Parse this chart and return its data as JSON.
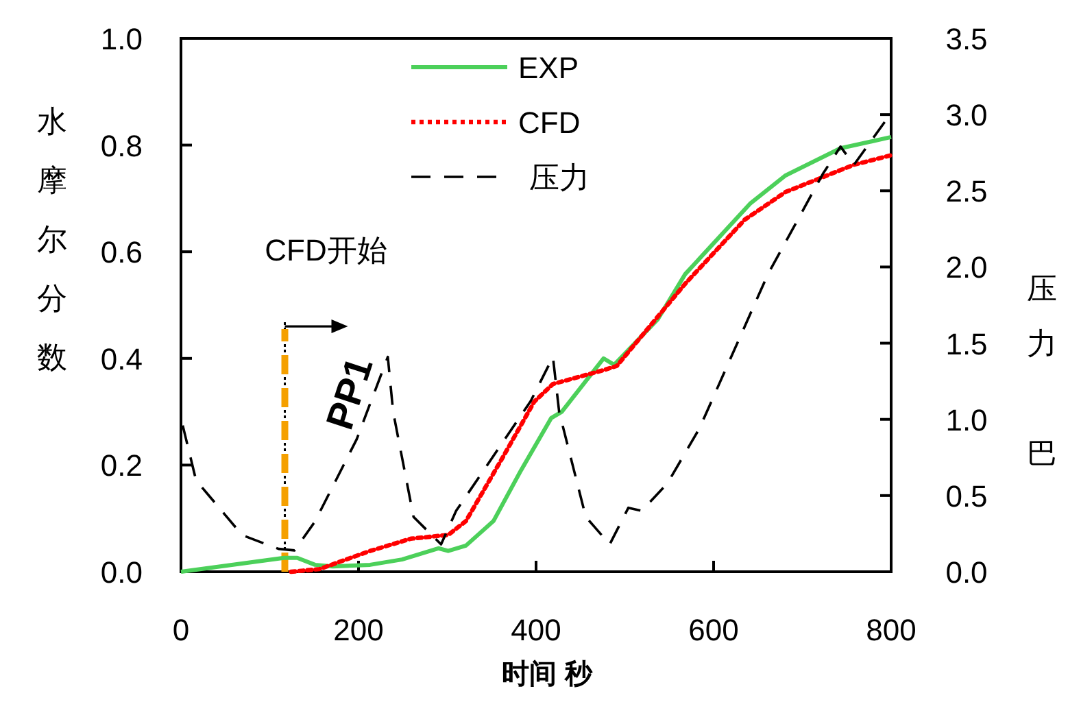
{
  "chart_data": {
    "type": "line",
    "xlabel": "时间 秒",
    "ylabel": "水摩尔分数",
    "y2label": "压力巴",
    "xlim": [
      0,
      800
    ],
    "xticks": [
      0,
      200,
      400,
      600,
      800
    ],
    "ylim": [
      0,
      1
    ],
    "yticks": [
      {
        "value": 0,
        "label": "0.0"
      },
      {
        "value": 0.2,
        "label": "0.2"
      },
      {
        "value": 0.4,
        "label": "0.4"
      },
      {
        "value": 0.6,
        "label": "0.6"
      },
      {
        "value": 0.8,
        "label": "0.8"
      },
      {
        "value": 1,
        "label": "1.0"
      }
    ],
    "y2lim": [
      0,
      3.5
    ],
    "y2ticks": [
      {
        "value": 0,
        "label": "0.0"
      },
      {
        "value": 0.5,
        "label": "0.5"
      },
      {
        "value": 1,
        "label": "1.0"
      },
      {
        "value": 1.5,
        "label": "1.5"
      },
      {
        "value": 2,
        "label": "2.0"
      },
      {
        "value": 2.5,
        "label": "2.5"
      },
      {
        "value": 3,
        "label": "3.0"
      },
      {
        "value": 3.5,
        "label": "3.5"
      }
    ],
    "legend": "top",
    "grid": false,
    "ref_lines": [
      {
        "axis": "x",
        "value": 117,
        "color": "#f5a000",
        "line_style": "dashed"
      }
    ],
    "annotations": [
      "CFD开始",
      {
        "text": "PP1",
        "x": 117,
        "y": 0.46
      }
    ],
    "series": [
      {
        "name": "EXP",
        "color": "#4cd05a",
        "line_style": "solid",
        "x": [
          0,
          116,
          131,
          151,
          171,
          213,
          249,
          290,
          301,
          321,
          352,
          383,
          417,
          429,
          476,
          488,
          537,
          568,
          641,
          681,
          743,
          800
        ],
        "values": [
          0,
          0.026,
          0.026,
          0.013,
          0.01,
          0.013,
          0.023,
          0.044,
          0.039,
          0.049,
          0.095,
          0.19,
          0.288,
          0.3,
          0.4,
          0.388,
          0.473,
          0.558,
          0.69,
          0.743,
          0.794,
          0.815
        ]
      },
      {
        "name": "CFD",
        "color": "#ff0000",
        "line_style": "dotted",
        "x": [
          124,
          156,
          213,
          259,
          301,
          321,
          363,
          398,
          419,
          476,
          491,
          568,
          635,
          681,
          758,
          800
        ],
        "values": [
          0,
          0.005,
          0.039,
          0.062,
          0.069,
          0.095,
          0.216,
          0.319,
          0.352,
          0.378,
          0.386,
          0.54,
          0.66,
          0.712,
          0.763,
          0.781
        ]
      },
      {
        "name": "压力",
        "color": "#000000",
        "line_style": "dashed",
        "axis": "y2",
        "x": [
          2,
          17,
          69,
          110,
          128,
          151,
          198,
          233,
          239,
          262,
          293,
          310,
          394,
          419,
          426,
          456,
          483,
          504,
          519,
          548,
          584,
          661,
          723,
          743,
          758,
          795
        ],
        "values": [
          0.96,
          0.6,
          0.24,
          0.15,
          0.14,
          0.33,
          0.87,
          1.41,
          1.05,
          0.36,
          0.18,
          0.4,
          1.12,
          1.41,
          1.05,
          0.36,
          0.18,
          0.42,
          0.4,
          0.58,
          0.94,
          1.95,
          2.61,
          2.79,
          2.67,
          2.97
        ]
      }
    ]
  }
}
